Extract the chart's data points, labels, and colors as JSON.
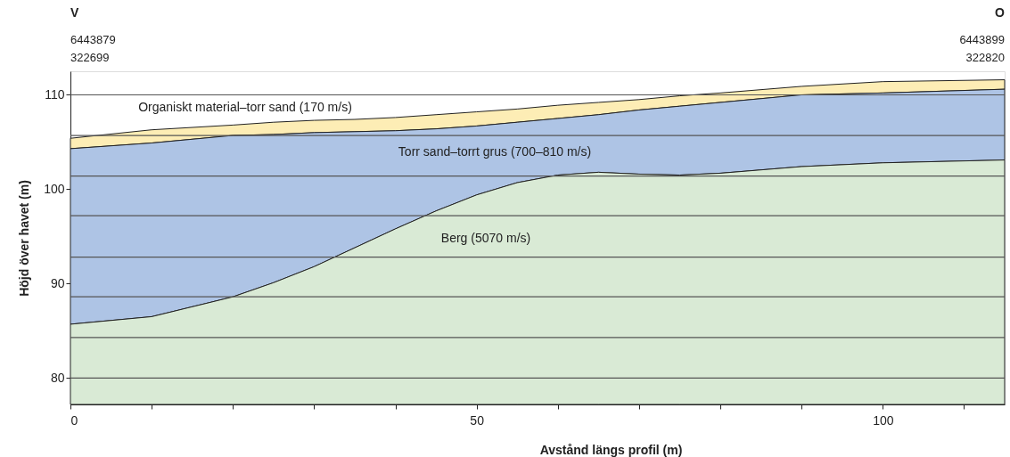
{
  "chart_data": {
    "type": "area",
    "xlabel": "Avstånd längs profil (m)",
    "ylabel": "Höjd över havet (m)",
    "x": [
      0,
      10,
      20,
      25,
      30,
      35,
      40,
      45,
      50,
      55,
      60,
      65,
      70,
      75,
      80,
      90,
      100,
      115
    ],
    "xlim": [
      0,
      115
    ],
    "ylim": [
      77.2,
      112.5
    ],
    "xticks": [
      0,
      {
        "value": 10,
        "label": null
      },
      {
        "value": 20,
        "label": null
      },
      {
        "value": 30,
        "label": null
      },
      {
        "value": 40,
        "label": null
      },
      50,
      {
        "value": 60,
        "label": null
      },
      {
        "value": 70,
        "label": null
      },
      {
        "value": 80,
        "label": null
      },
      {
        "value": 90,
        "label": null
      },
      100,
      {
        "value": 110,
        "label": null
      }
    ],
    "yticks": [
      80,
      90,
      100,
      110
    ],
    "grid": false,
    "series": [
      {
        "color": "#fdedb5",
        "values": [
          105.4,
          106.3,
          106.8,
          107.1,
          107.3,
          107.4,
          107.6,
          107.9,
          108.2,
          108.5,
          108.9,
          109.2,
          109.5,
          109.9,
          110.2,
          110.9,
          111.4,
          111.6
        ]
      },
      {
        "color": "#aec4e5",
        "values": [
          104.3,
          104.9,
          105.7,
          105.8,
          106.0,
          106.1,
          106.2,
          106.4,
          106.7,
          107.1,
          107.5,
          107.9,
          108.4,
          108.8,
          109.2,
          110.0,
          110.2,
          110.6
        ]
      },
      {
        "color": "#d9ead5",
        "values": [
          85.7,
          86.5,
          88.6,
          90.1,
          91.8,
          93.8,
          95.8,
          97.7,
          99.4,
          100.7,
          101.5,
          101.8,
          101.6,
          101.5,
          101.7,
          102.4,
          102.8,
          103.1
        ]
      }
    ],
    "ref_lines": [
      {
        "axis": "y",
        "value": 80,
        "color": "#555555"
      },
      {
        "axis": "y",
        "value": 84.3,
        "color": "#555555"
      },
      {
        "axis": "y",
        "value": 88.6,
        "color": "#555555"
      },
      {
        "axis": "y",
        "value": 92.8,
        "color": "#555555"
      },
      {
        "axis": "y",
        "value": 97.2,
        "color": "#555555"
      },
      {
        "axis": "y",
        "value": 101.4,
        "color": "#555555"
      },
      {
        "axis": "y",
        "value": 105.7,
        "color": "#555555"
      },
      {
        "axis": "y",
        "value": 110,
        "color": "#555555"
      }
    ],
    "annotations": [
      "Organiskt material–torr sand (170 m/s)",
      "Torr sand–torrt grus (700–810 m/s)",
      "Berg  (5070 m/s)",
      "V",
      "6443879",
      "322699",
      "O",
      "6443899",
      "322820"
    ]
  }
}
